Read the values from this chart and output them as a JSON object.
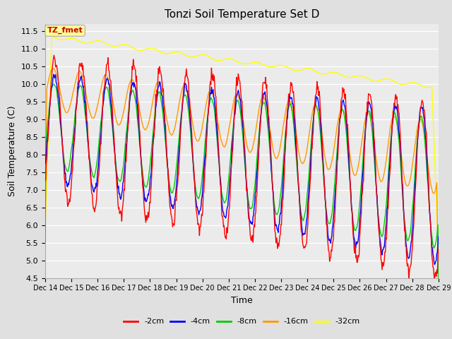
{
  "title": "Tonzi Soil Temperature Set D",
  "xlabel": "Time",
  "ylabel": "Soil Temperature (C)",
  "ylim": [
    4.5,
    11.7
  ],
  "yticks": [
    4.5,
    5.0,
    5.5,
    6.0,
    6.5,
    7.0,
    7.5,
    8.0,
    8.5,
    9.0,
    9.5,
    10.0,
    10.5,
    11.0,
    11.5
  ],
  "xtick_labels": [
    "Dec 14",
    "Dec 15",
    "Dec 16",
    "Dec 17",
    "Dec 18",
    "Dec 19",
    "Dec 20",
    "Dec 21",
    "Dec 22",
    "Dec 23",
    "Dec 24",
    "Dec 25",
    "Dec 26",
    "Dec 27",
    "Dec 28",
    "Dec 29"
  ],
  "colors": {
    "-2cm": "#ff0000",
    "-4cm": "#0000ff",
    "-8cm": "#00cc00",
    "-16cm": "#ff9900",
    "-32cm": "#ffff00"
  },
  "annotation_text": "TZ_fmet",
  "annotation_color": "#cc0000",
  "annotation_bg": "#ffff99",
  "fig_bg": "#e0e0e0",
  "plot_bg": "#ebebeb",
  "n_points": 720,
  "period_days": 1.0,
  "days": 15
}
